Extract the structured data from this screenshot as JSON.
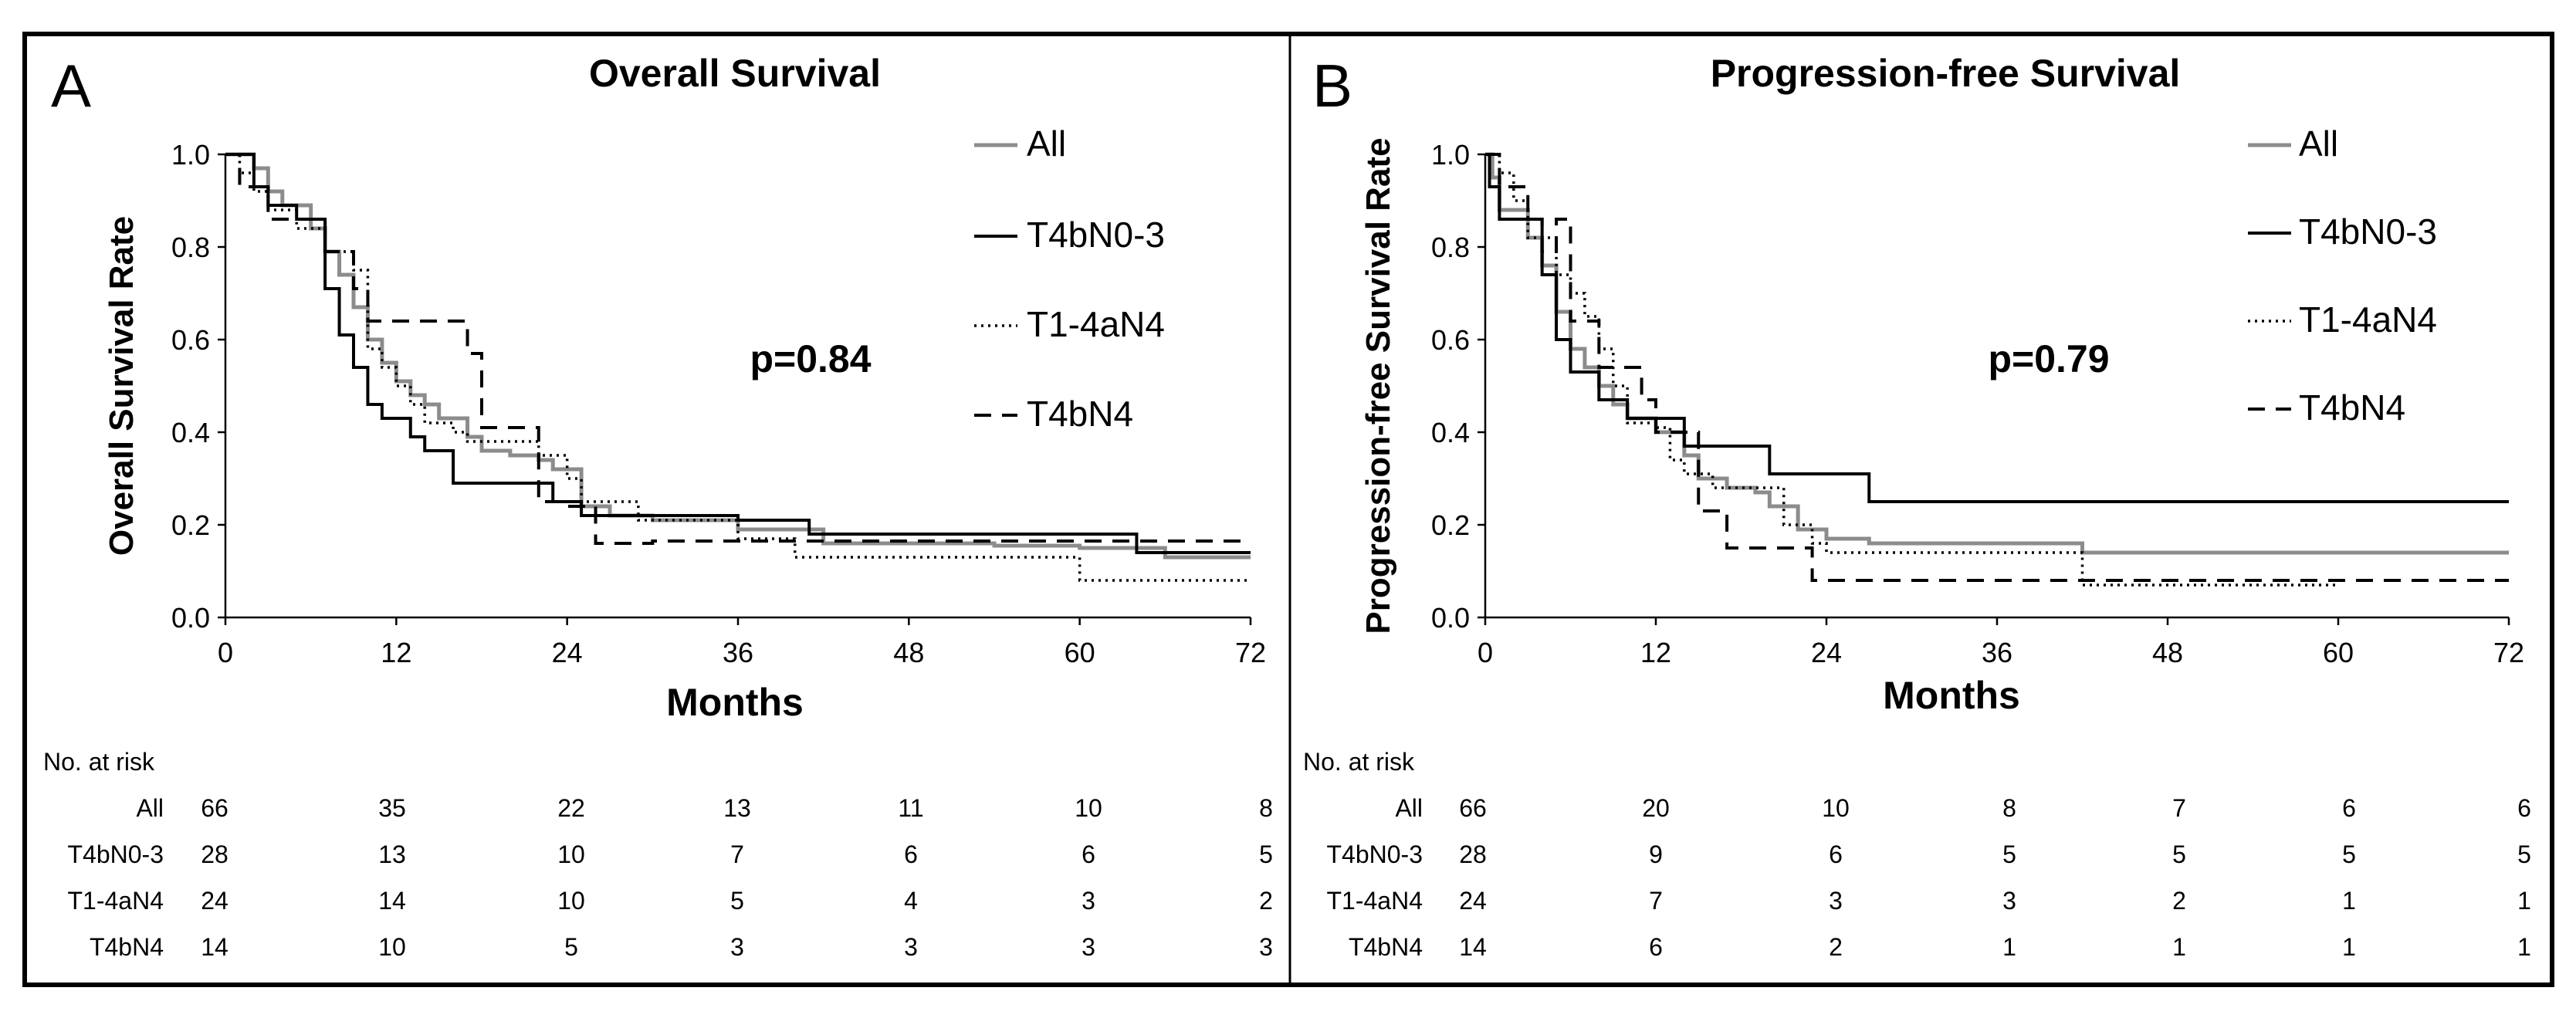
{
  "figure": {
    "colors": {
      "all": "#8c8c8c",
      "t4bn03": "#000000",
      "t14an4": "#000000",
      "t4bn4": "#000000"
    }
  },
  "chart_data": [
    {
      "type": "line",
      "panel_label": "A",
      "title": "Overall Survival",
      "xlabel": "Months",
      "ylabel": "Overall Survival Rate",
      "xlim": [
        0,
        72
      ],
      "ylim": [
        0,
        1
      ],
      "x_ticks": [
        "0",
        "12",
        "24",
        "36",
        "48",
        "60",
        "72"
      ],
      "y_ticks": [
        "0.0",
        "0.2",
        "0.4",
        "0.6",
        "0.8",
        "1.0"
      ],
      "annotation": "p=0.84",
      "legend": [
        "All",
        "T4bN0-3",
        "T1-4aN4",
        "T4bN4"
      ],
      "series": [
        {
          "name": "All",
          "style": "gray",
          "steps": [
            [
              0,
              1.0
            ],
            [
              2,
              0.97
            ],
            [
              3,
              0.92
            ],
            [
              4,
              0.89
            ],
            [
              6,
              0.84
            ],
            [
              7,
              0.79
            ],
            [
              8,
              0.74
            ],
            [
              9,
              0.67
            ],
            [
              10,
              0.6
            ],
            [
              11,
              0.55
            ],
            [
              12,
              0.51
            ],
            [
              13,
              0.48
            ],
            [
              14,
              0.46
            ],
            [
              15,
              0.43
            ],
            [
              17,
              0.39
            ],
            [
              18,
              0.36
            ],
            [
              20,
              0.35
            ],
            [
              22,
              0.34
            ],
            [
              23,
              0.32
            ],
            [
              25,
              0.24
            ],
            [
              27,
              0.22
            ],
            [
              30,
              0.21
            ],
            [
              36,
              0.19
            ],
            [
              42,
              0.16
            ],
            [
              54,
              0.155
            ],
            [
              60,
              0.15
            ],
            [
              66,
              0.13
            ],
            [
              72,
              0.13
            ]
          ]
        },
        {
          "name": "T4bN0-3",
          "style": "solid",
          "steps": [
            [
              0,
              1.0
            ],
            [
              2,
              0.93
            ],
            [
              3,
              0.89
            ],
            [
              5,
              0.86
            ],
            [
              7,
              0.71
            ],
            [
              8,
              0.61
            ],
            [
              9,
              0.54
            ],
            [
              10,
              0.46
            ],
            [
              11,
              0.43
            ],
            [
              13,
              0.39
            ],
            [
              14,
              0.36
            ],
            [
              16,
              0.29
            ],
            [
              22,
              0.29
            ],
            [
              23,
              0.25
            ],
            [
              25,
              0.22
            ],
            [
              36,
              0.21
            ],
            [
              41,
              0.18
            ],
            [
              64,
              0.14
            ],
            [
              72,
              0.14
            ]
          ]
        },
        {
          "name": "T1-4aN4",
          "style": "dotted",
          "steps": [
            [
              0,
              1.0
            ],
            [
              1,
              0.96
            ],
            [
              2,
              0.92
            ],
            [
              3,
              0.88
            ],
            [
              5,
              0.84
            ],
            [
              7,
              0.79
            ],
            [
              9,
              0.75
            ],
            [
              10,
              0.58
            ],
            [
              11,
              0.54
            ],
            [
              12,
              0.5
            ],
            [
              13,
              0.46
            ],
            [
              14,
              0.42
            ],
            [
              16,
              0.4
            ],
            [
              17,
              0.38
            ],
            [
              19,
              0.38
            ],
            [
              22,
              0.35
            ],
            [
              24,
              0.3
            ],
            [
              25,
              0.25
            ],
            [
              29,
              0.21
            ],
            [
              36,
              0.17
            ],
            [
              40,
              0.13
            ],
            [
              60,
              0.08
            ],
            [
              72,
              0.08
            ]
          ]
        },
        {
          "name": "T4bN4",
          "style": "dashed",
          "steps": [
            [
              0,
              1.0
            ],
            [
              1,
              0.93
            ],
            [
              3,
              0.86
            ],
            [
              7,
              0.79
            ],
            [
              9,
              0.71
            ],
            [
              10,
              0.64
            ],
            [
              17,
              0.57
            ],
            [
              18,
              0.41
            ],
            [
              22,
              0.25
            ],
            [
              24,
              0.24
            ],
            [
              26,
              0.16
            ],
            [
              30,
              0.165
            ],
            [
              72,
              0.165
            ]
          ]
        }
      ],
      "risk_table": {
        "header": "No. at risk",
        "times": [
          0,
          12,
          24,
          36,
          48,
          60,
          72
        ],
        "rows": [
          {
            "label": "All",
            "values": [
              "66",
              "35",
              "22",
              "13",
              "11",
              "10",
              "8"
            ]
          },
          {
            "label": "T4bN0-3",
            "values": [
              "28",
              "13",
              "10",
              "7",
              "6",
              "6",
              "5"
            ]
          },
          {
            "label": "T1-4aN4",
            "values": [
              "24",
              "14",
              "10",
              "5",
              "4",
              "3",
              "2"
            ]
          },
          {
            "label": "T4bN4",
            "values": [
              "14",
              "10",
              "5",
              "3",
              "3",
              "3",
              "3"
            ]
          }
        ]
      }
    },
    {
      "type": "line",
      "panel_label": "B",
      "title": "Progression-free Survival",
      "xlabel": "Months",
      "ylabel": "Progression-free Survival Rate",
      "xlim": [
        0,
        72
      ],
      "ylim": [
        0,
        1
      ],
      "x_ticks": [
        "0",
        "12",
        "24",
        "36",
        "48",
        "60",
        "72"
      ],
      "y_ticks": [
        "0.0",
        "0.2",
        "0.4",
        "0.6",
        "0.8",
        "1.0"
      ],
      "annotation": "p=0.79",
      "legend": [
        "All",
        "T4bN0-3",
        "T1-4aN4",
        "T4bN4"
      ],
      "series": [
        {
          "name": "All",
          "style": "gray",
          "steps": [
            [
              0,
              1.0
            ],
            [
              0.5,
              0.95
            ],
            [
              1,
              0.88
            ],
            [
              3,
              0.82
            ],
            [
              4,
              0.76
            ],
            [
              5,
              0.66
            ],
            [
              6,
              0.58
            ],
            [
              7,
              0.54
            ],
            [
              8,
              0.5
            ],
            [
              9,
              0.46
            ],
            [
              10,
              0.43
            ],
            [
              12,
              0.4
            ],
            [
              14,
              0.35
            ],
            [
              15,
              0.3
            ],
            [
              17,
              0.28
            ],
            [
              19,
              0.27
            ],
            [
              20,
              0.24
            ],
            [
              22,
              0.19
            ],
            [
              24,
              0.17
            ],
            [
              27,
              0.16
            ],
            [
              42,
              0.14
            ],
            [
              72,
              0.14
            ]
          ]
        },
        {
          "name": "T4bN0-3",
          "style": "solid",
          "steps": [
            [
              0,
              1.0
            ],
            [
              0.3,
              0.93
            ],
            [
              1,
              0.86
            ],
            [
              4,
              0.74
            ],
            [
              5,
              0.6
            ],
            [
              6,
              0.53
            ],
            [
              8,
              0.47
            ],
            [
              10,
              0.43
            ],
            [
              14,
              0.37
            ],
            [
              20,
              0.31
            ],
            [
              27,
              0.25
            ],
            [
              72,
              0.25
            ]
          ]
        },
        {
          "name": "T1-4aN4",
          "style": "dotted",
          "steps": [
            [
              0,
              1.0
            ],
            [
              1,
              0.96
            ],
            [
              2,
              0.9
            ],
            [
              3,
              0.82
            ],
            [
              5,
              0.74
            ],
            [
              6,
              0.7
            ],
            [
              7,
              0.65
            ],
            [
              8,
              0.58
            ],
            [
              9,
              0.5
            ],
            [
              10,
              0.42
            ],
            [
              12,
              0.41
            ],
            [
              13,
              0.34
            ],
            [
              14,
              0.31
            ],
            [
              16,
              0.28
            ],
            [
              21,
              0.2
            ],
            [
              23,
              0.16
            ],
            [
              24,
              0.14
            ],
            [
              42,
              0.07
            ],
            [
              60,
              0.07
            ]
          ]
        },
        {
          "name": "T4bN4",
          "style": "dashed",
          "steps": [
            [
              0,
              1.0
            ],
            [
              1,
              0.93
            ],
            [
              3,
              0.86
            ],
            [
              4,
              0.79
            ],
            [
              5,
              0.86
            ],
            [
              6,
              0.64
            ],
            [
              8,
              0.54
            ],
            [
              11,
              0.47
            ],
            [
              12,
              0.4
            ],
            [
              15,
              0.23
            ],
            [
              17,
              0.15
            ],
            [
              23,
              0.08
            ],
            [
              72,
              0.08
            ]
          ]
        }
      ],
      "risk_table": {
        "header": "No. at risk",
        "times": [
          0,
          12,
          24,
          36,
          48,
          60,
          72
        ],
        "rows": [
          {
            "label": "All",
            "values": [
              "66",
              "20",
              "10",
              "8",
              "7",
              "6",
              "6"
            ]
          },
          {
            "label": "T4bN0-3",
            "values": [
              "28",
              "9",
              "6",
              "5",
              "5",
              "5",
              "5"
            ]
          },
          {
            "label": "T1-4aN4",
            "values": [
              "24",
              "7",
              "3",
              "3",
              "2",
              "1",
              "1"
            ]
          },
          {
            "label": "T4bN4",
            "values": [
              "14",
              "6",
              "2",
              "1",
              "1",
              "1",
              "1"
            ]
          }
        ]
      }
    }
  ]
}
